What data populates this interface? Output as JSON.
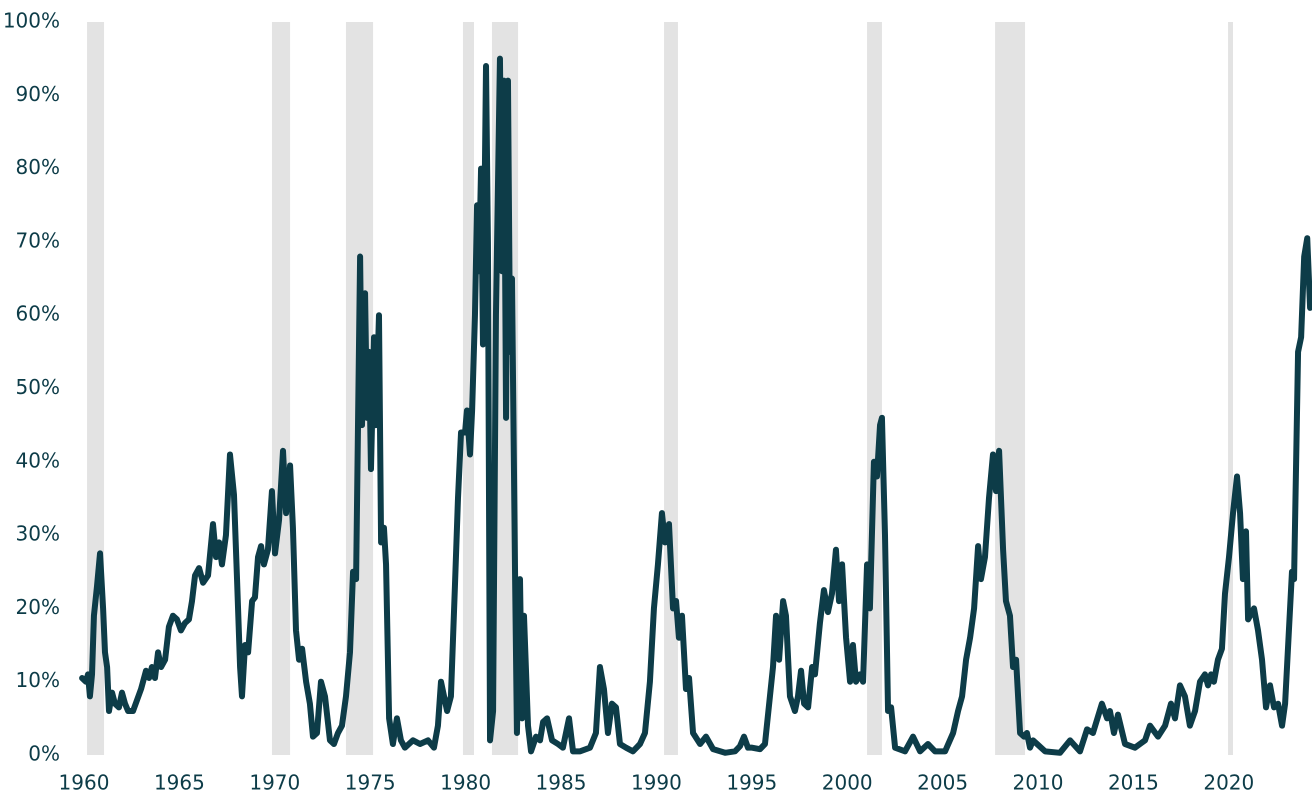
{
  "chart_data": {
    "type": "line",
    "color": "#0d3c48",
    "shade_color": "#e3e3e3",
    "shaded_periods": [
      [
        1960.16,
        1961.05
      ],
      [
        1969.85,
        1970.8
      ],
      [
        1973.73,
        1975.15
      ],
      [
        1979.86,
        1980.44
      ],
      [
        1981.38,
        1982.75
      ],
      [
        1990.4,
        1991.13
      ],
      [
        2001.04,
        2001.82
      ],
      [
        2007.75,
        2009.32
      ],
      [
        2019.96,
        2020.22
      ]
    ],
    "xlim": [
      1959.79,
      2024.36
    ],
    "xticks": [
      1960,
      1965,
      1970,
      1975,
      1980,
      1985,
      1990,
      1995,
      2000,
      2005,
      2010,
      2015,
      2020
    ],
    "ylim": [
      0,
      100
    ],
    "yticks": [
      {
        "value": 0,
        "label": "0%"
      },
      {
        "value": 10,
        "label": "10%"
      },
      {
        "value": 20,
        "label": "20%"
      },
      {
        "value": 30,
        "label": "30%"
      },
      {
        "value": 40,
        "label": "40%"
      },
      {
        "value": 50,
        "label": "50%"
      },
      {
        "value": 60,
        "label": "60%"
      },
      {
        "value": 70,
        "label": "70%"
      },
      {
        "value": 80,
        "label": "80%"
      },
      {
        "value": 90,
        "label": "90%"
      },
      {
        "value": 100,
        "label": "100%"
      }
    ],
    "x": [
      1959.9,
      1960.1,
      1960.21,
      1960.31,
      1960.42,
      1960.52,
      1960.68,
      1960.84,
      1961.0,
      1961.1,
      1961.21,
      1961.31,
      1961.47,
      1961.62,
      1961.83,
      1961.99,
      1962.15,
      1962.31,
      1962.57,
      1962.78,
      1962.99,
      1963.25,
      1963.41,
      1963.56,
      1963.72,
      1963.88,
      1964.04,
      1964.25,
      1964.45,
      1964.66,
      1964.87,
      1965.08,
      1965.29,
      1965.5,
      1965.66,
      1965.82,
      1966.03,
      1966.24,
      1966.5,
      1966.76,
      1966.92,
      1967.08,
      1967.23,
      1967.44,
      1967.65,
      1967.86,
      1968.02,
      1968.18,
      1968.28,
      1968.44,
      1968.6,
      1968.81,
      1968.96,
      1969.12,
      1969.28,
      1969.43,
      1969.64,
      1969.85,
      1970.01,
      1970.22,
      1970.43,
      1970.59,
      1970.8,
      1970.95,
      1971.11,
      1971.27,
      1971.43,
      1971.64,
      1971.84,
      1972.0,
      1972.21,
      1972.42,
      1972.63,
      1972.89,
      1973.1,
      1973.31,
      1973.52,
      1973.73,
      1973.94,
      1974.1,
      1974.26,
      1974.47,
      1974.57,
      1974.73,
      1974.83,
      1974.94,
      1975.04,
      1975.2,
      1975.3,
      1975.46,
      1975.57,
      1975.72,
      1975.83,
      1975.99,
      1976.19,
      1976.4,
      1976.61,
      1976.82,
      1977.24,
      1977.61,
      1978.03,
      1978.34,
      1978.55,
      1978.71,
      1978.87,
      1979.03,
      1979.23,
      1979.44,
      1979.6,
      1979.76,
      1979.97,
      1980.07,
      1980.23,
      1980.34,
      1980.49,
      1980.6,
      1980.7,
      1980.81,
      1980.91,
      1981.07,
      1981.17,
      1981.28,
      1981.44,
      1981.59,
      1981.8,
      1981.91,
      1982.01,
      1982.12,
      1982.22,
      1982.33,
      1982.43,
      1982.59,
      1982.69,
      1982.85,
      1982.96,
      1983.06,
      1983.27,
      1983.43,
      1983.69,
      1983.9,
      1984.06,
      1984.27,
      1984.53,
      1984.84,
      1985.1,
      1985.42,
      1985.63,
      1986.0,
      1986.52,
      1986.83,
      1987.04,
      1987.25,
      1987.46,
      1987.67,
      1987.88,
      1988.09,
      1988.41,
      1988.77,
      1989.14,
      1989.4,
      1989.66,
      1989.87,
      1990.08,
      1990.29,
      1990.45,
      1990.66,
      1990.87,
      1991.03,
      1991.18,
      1991.34,
      1991.55,
      1991.71,
      1991.92,
      1992.29,
      1992.6,
      1992.97,
      1993.6,
      1994.12,
      1994.38,
      1994.59,
      1994.8,
      1995.01,
      1995.43,
      1995.69,
      1995.95,
      1996.11,
      1996.27,
      1996.43,
      1996.64,
      1996.79,
      1997.0,
      1997.26,
      1997.42,
      1997.58,
      1997.74,
      1997.95,
      1998.16,
      1998.31,
      1998.57,
      1998.78,
      1998.99,
      1999.2,
      1999.41,
      1999.57,
      1999.73,
      1999.94,
      2000.15,
      2000.3,
      2000.46,
      2000.67,
      2000.83,
      2001.04,
      2001.19,
      2001.4,
      2001.56,
      2001.72,
      2001.82,
      2001.98,
      2002.14,
      2002.3,
      2002.51,
      2003.03,
      2003.45,
      2003.82,
      2004.23,
      2004.6,
      2005.13,
      2005.55,
      2005.81,
      2006.02,
      2006.23,
      2006.44,
      2006.65,
      2006.86,
      2007.01,
      2007.22,
      2007.43,
      2007.64,
      2007.8,
      2007.96,
      2008.17,
      2008.32,
      2008.53,
      2008.69,
      2008.85,
      2009.06,
      2009.27,
      2009.42,
      2009.58,
      2009.74,
      2009.95,
      2010.37,
      2011.15,
      2011.68,
      2012.2,
      2012.57,
      2012.88,
      2013.35,
      2013.62,
      2013.77,
      2013.98,
      2014.19,
      2014.56,
      2015.08,
      2015.61,
      2015.87,
      2016.29,
      2016.66,
      2016.97,
      2017.18,
      2017.44,
      2017.7,
      2017.96,
      2018.23,
      2018.49,
      2018.75,
      2018.91,
      2019.07,
      2019.22,
      2019.43,
      2019.64,
      2019.8,
      2020.01,
      2020.22,
      2020.43,
      2020.59,
      2020.74,
      2020.9,
      2021.01,
      2021.32,
      2021.53,
      2021.74,
      2021.95,
      2022.16,
      2022.37,
      2022.58,
      2022.79,
      2022.95,
      2023.31,
      2023.42,
      2023.63,
      2023.79,
      2023.95,
      2024.11,
      2024.26
    ],
    "values": [
      10.5,
      10,
      11,
      8,
      11,
      19,
      23,
      27.5,
      20,
      14,
      12,
      6,
      8.5,
      7,
      6.5,
      8.5,
      7,
      6,
      6,
      7.5,
      9,
      11.5,
      10.5,
      12,
      10.5,
      14,
      12,
      13,
      17.5,
      19,
      18.5,
      17,
      18,
      18.5,
      21,
      24.5,
      25.5,
      23.5,
      24.5,
      31.5,
      27,
      29,
      26,
      30,
      41,
      35.5,
      24,
      12,
      8,
      15,
      14,
      21,
      21.5,
      27,
      28.5,
      26,
      28,
      36,
      27.5,
      32,
      41.5,
      33,
      39.5,
      31,
      17,
      13,
      14.5,
      10,
      7,
      2.5,
      3,
      10,
      8,
      2,
      1.5,
      3,
      4,
      8,
      14,
      25,
      24,
      68,
      45,
      63,
      46,
      55,
      39,
      57,
      45,
      60,
      29,
      31,
      26,
      5,
      1.5,
      5,
      2,
      1,
      2,
      1.5,
      2,
      1,
      4,
      10,
      8,
      6,
      8,
      23,
      35,
      44,
      44,
      47,
      41,
      47,
      60,
      75,
      66,
      80,
      56,
      94,
      70,
      2,
      6,
      60,
      95,
      66,
      92,
      46,
      92,
      55,
      65,
      25,
      3,
      24,
      5,
      19,
      4,
      0.5,
      2.5,
      2,
      4.5,
      5,
      2,
      1.5,
      1,
      5,
      0.5,
      0.5,
      1,
      3,
      12,
      9,
      3,
      7,
      6.5,
      1.5,
      1,
      0.5,
      1.5,
      3,
      10,
      20,
      26,
      33,
      29,
      31.5,
      20,
      21,
      16,
      19,
      9,
      10.5,
      3,
      1.5,
      2.5,
      0.8,
      0.3,
      0.5,
      1.2,
      2.5,
      1,
      1,
      0.8,
      1.5,
      8,
      12,
      19,
      13,
      21,
      19,
      8,
      6,
      8,
      11.5,
      7,
      6.5,
      12,
      11,
      18,
      22.5,
      19.5,
      22,
      28,
      21,
      26,
      16,
      10,
      15,
      10,
      11,
      10,
      26,
      20,
      40,
      38,
      45,
      46,
      30,
      6,
      6.5,
      1,
      0.5,
      2.5,
      0.5,
      1.5,
      0.5,
      0.5,
      3,
      6,
      8,
      13,
      16,
      20,
      28.5,
      24,
      27,
      35,
      41,
      36,
      41.5,
      28,
      21,
      19,
      12,
      13,
      3,
      2.5,
      3,
      1,
      2,
      1.5,
      0.5,
      0.3,
      2,
      0.5,
      3.5,
      3,
      7,
      5,
      6,
      3,
      5.5,
      1.5,
      1,
      2,
      4,
      2.5,
      4,
      7,
      5,
      9.5,
      8,
      4,
      6,
      10,
      11,
      9.5,
      11,
      10,
      13,
      14.5,
      22,
      27,
      33,
      38,
      33,
      24,
      30.5,
      18.5,
      20,
      17,
      13,
      6.5,
      9.5,
      6.5,
      7,
      4,
      7,
      25,
      24,
      55,
      57,
      68,
      70.5,
      61
    ]
  }
}
